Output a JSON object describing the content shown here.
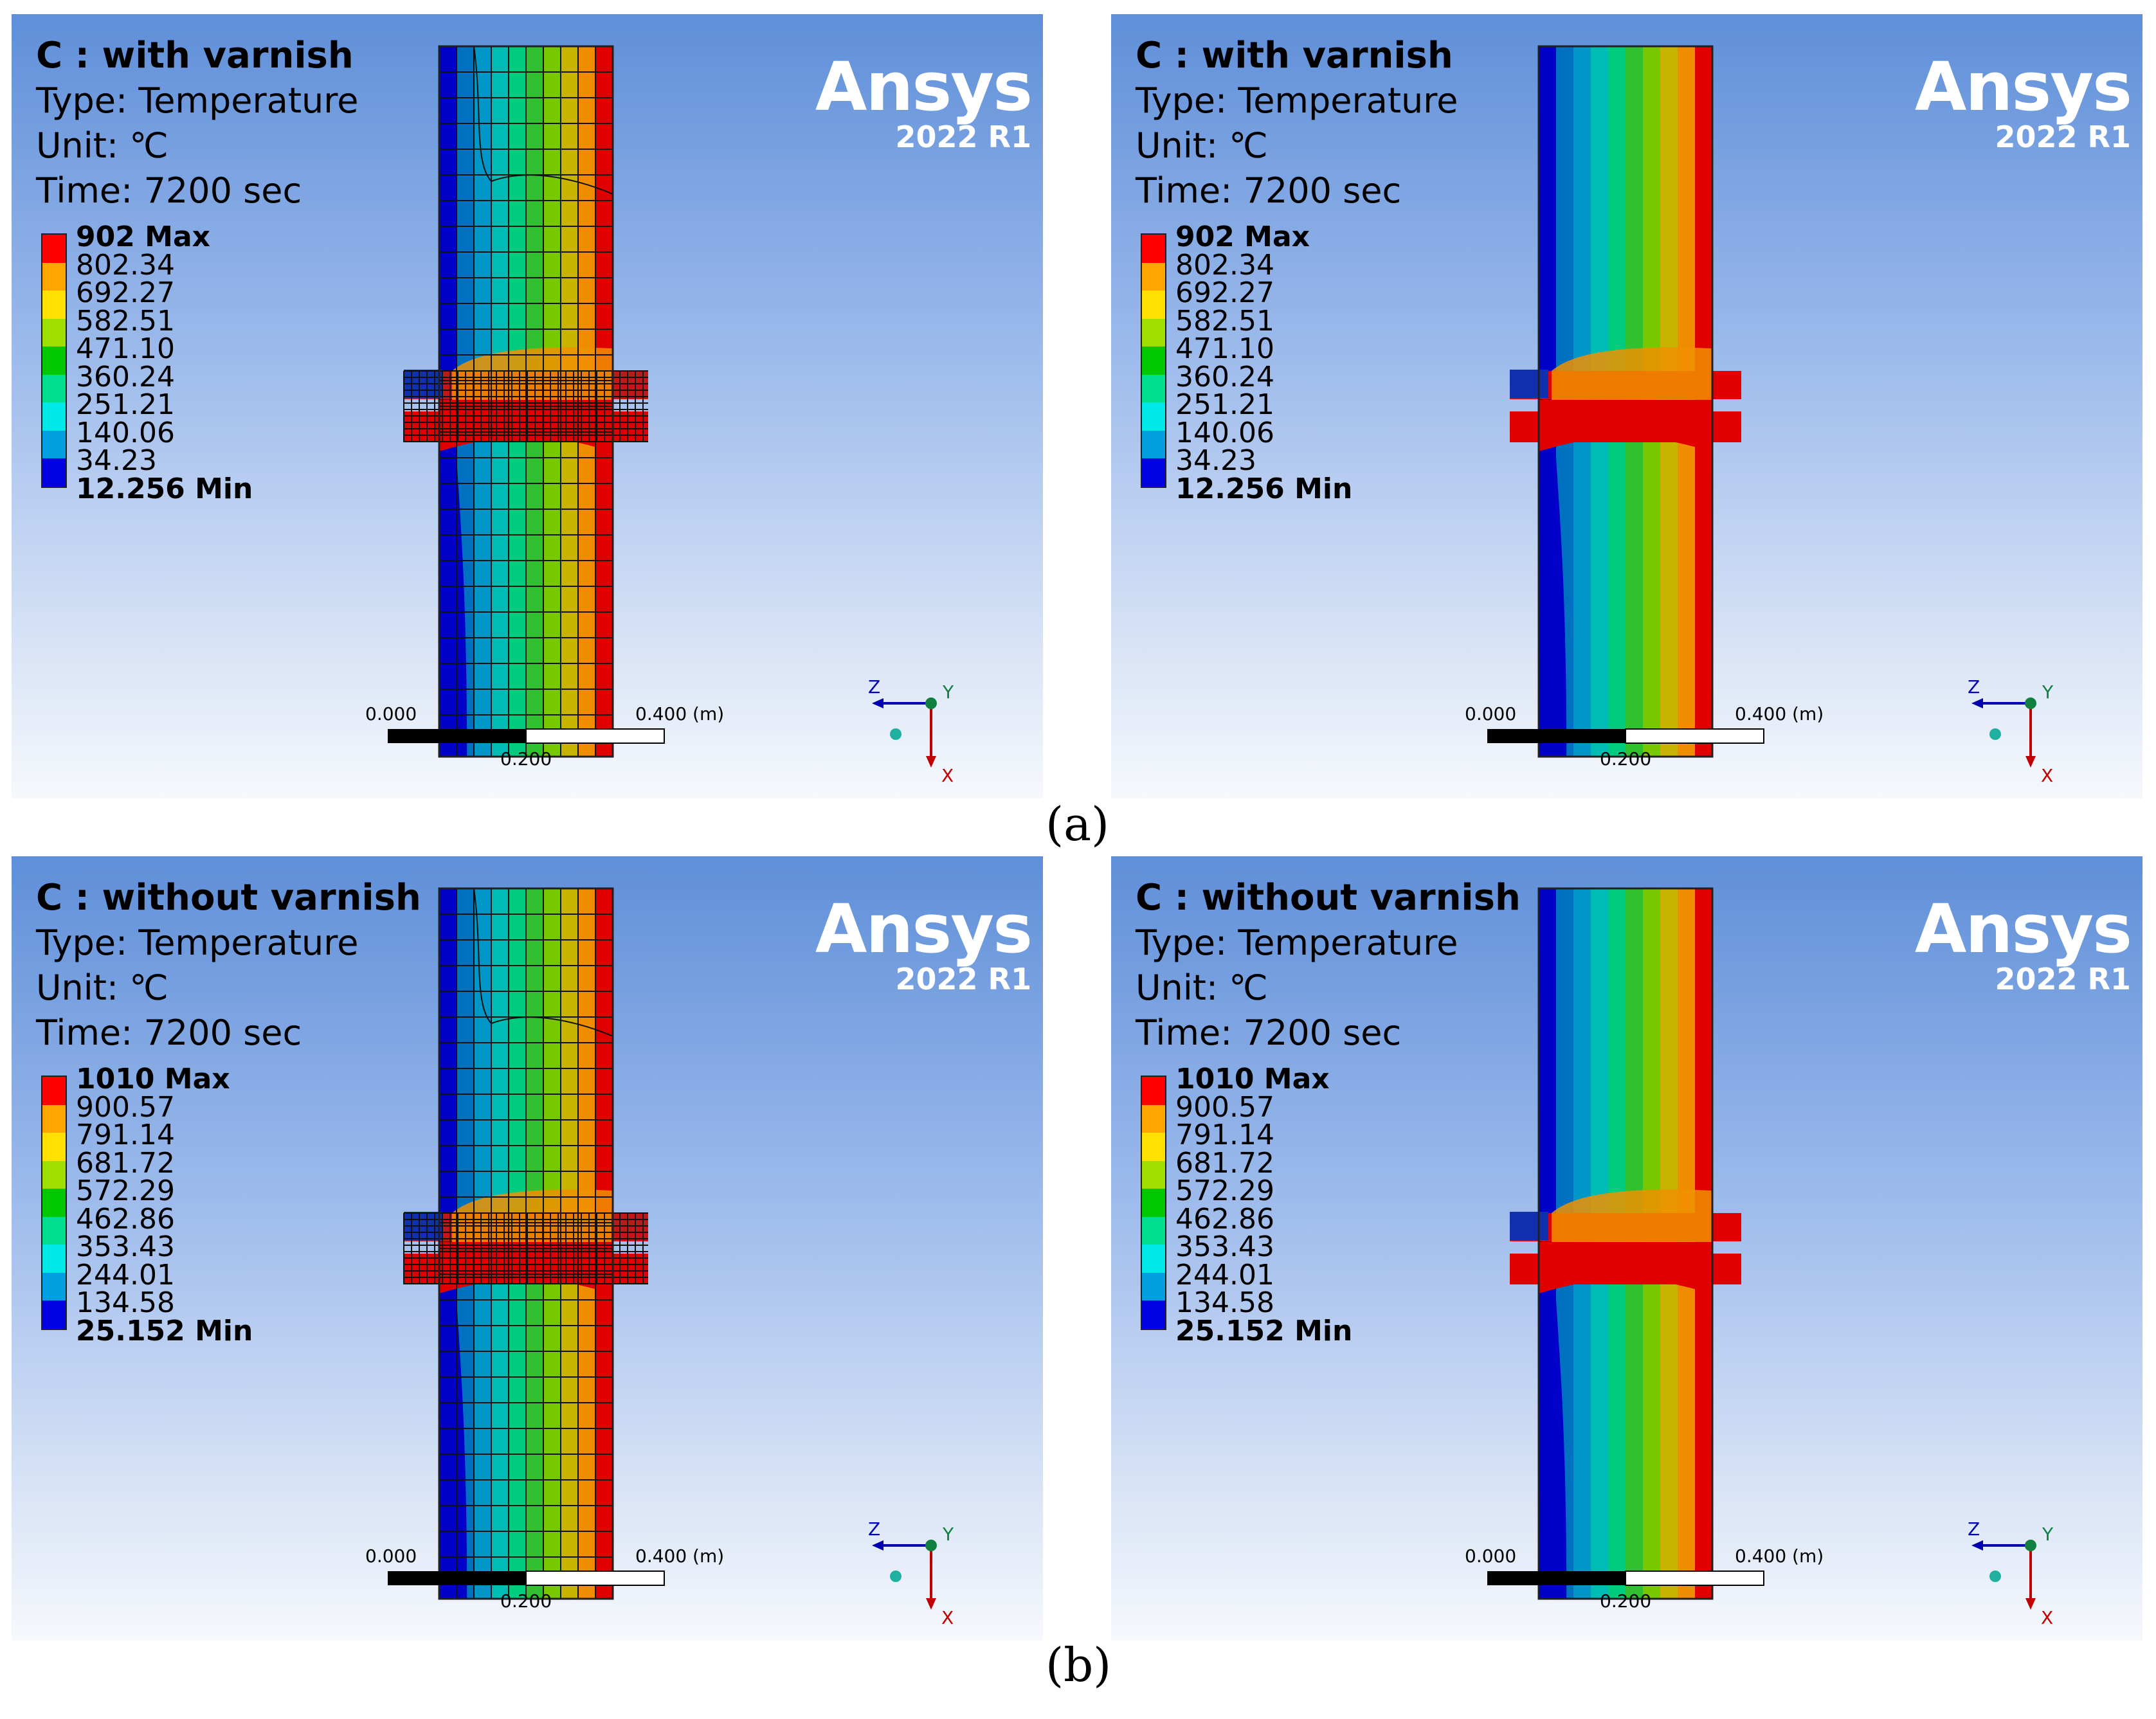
{
  "panels": [
    {
      "title": "C : with varnish",
      "type": "Type: Temperature",
      "unit": "Unit: ℃",
      "time": "Time: 7200 sec",
      "legend": [
        "902 Max",
        "802.34",
        "692.27",
        "582.51",
        "471.10",
        "360.24",
        "251.21",
        "140.06",
        "34.23",
        "12.256 Min"
      ],
      "view": "mesh"
    },
    {
      "title": "C : with varnish",
      "type": "Type: Temperature",
      "unit": "Unit: ℃",
      "time": "Time: 7200 sec",
      "legend": [
        "902 Max",
        "802.34",
        "692.27",
        "582.51",
        "471.10",
        "360.24",
        "251.21",
        "140.06",
        "34.23",
        "12.256 Min"
      ],
      "view": "contour"
    },
    {
      "title": "C : without varnish",
      "type": "Type: Temperature",
      "unit": "Unit: ℃",
      "time": "Time: 7200 sec",
      "legend": [
        "1010 Max",
        "900.57",
        "791.14",
        "681.72",
        "572.29",
        "462.86",
        "353.43",
        "244.01",
        "134.58",
        "25.152 Min"
      ],
      "view": "mesh"
    },
    {
      "title": "C : without varnish",
      "type": "Type: Temperature",
      "unit": "Unit: ℃",
      "time": "Time: 7200 sec",
      "legend": [
        "1010 Max",
        "900.57",
        "791.14",
        "681.72",
        "572.29",
        "462.86",
        "353.43",
        "244.01",
        "134.58",
        "25.152 Min"
      ],
      "view": "contour"
    }
  ],
  "logo": {
    "name": "Ansys",
    "version": "2022 R1"
  },
  "scale": {
    "left": "0.000",
    "mid": "0.200",
    "right": "0.400 (m)"
  },
  "axes": {
    "z": "Z",
    "y": "Y",
    "x": "X"
  },
  "captions": {
    "a": "(a)",
    "b": "(b)"
  },
  "colors": {
    "legend": [
      "#ff0000",
      "#ffa500",
      "#ffe000",
      "#a0e000",
      "#00c800",
      "#00e090",
      "#00e8e8",
      "#00a0e0",
      "#0000e0"
    ],
    "bands": [
      "#0000c8",
      "#0070c0",
      "#0096c8",
      "#00bcb4",
      "#00cc80",
      "#30c030",
      "#78c800",
      "#c8b400",
      "#f08c00",
      "#e00000"
    ]
  }
}
